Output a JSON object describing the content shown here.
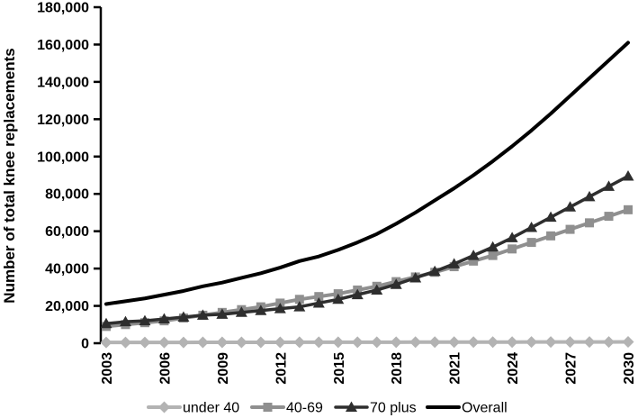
{
  "chart_data": {
    "type": "line",
    "title": "",
    "ylabel": "Number of total knee replacements",
    "xlabel": "",
    "ylim": [
      0,
      180000
    ],
    "ytick_step": 20000,
    "ytick_labels": [
      "0",
      "20,000",
      "40,000",
      "60,000",
      "80,000",
      "100,000",
      "120,000",
      "140,000",
      "160,000",
      "180,000"
    ],
    "x": [
      2003,
      2004,
      2005,
      2006,
      2007,
      2008,
      2009,
      2010,
      2011,
      2012,
      2013,
      2014,
      2015,
      2016,
      2017,
      2018,
      2019,
      2020,
      2021,
      2022,
      2023,
      2024,
      2025,
      2026,
      2027,
      2028,
      2029,
      2030
    ],
    "xtick_labels": [
      "2003",
      "2006",
      "2009",
      "2012",
      "2015",
      "2018",
      "2021",
      "2024",
      "2027",
      "2030"
    ],
    "grid": false,
    "legend_position": "bottom",
    "series": [
      {
        "name": "under 40",
        "marker": "diamond",
        "color": "#b3b3b3",
        "line_width": 4,
        "values": [
          400,
          410,
          420,
          430,
          450,
          460,
          470,
          480,
          500,
          510,
          520,
          530,
          540,
          550,
          560,
          570,
          580,
          590,
          600,
          610,
          620,
          630,
          640,
          650,
          660,
          670,
          680,
          700
        ]
      },
      {
        "name": "40-69",
        "marker": "square",
        "color": "#8f8f8f",
        "line_width": 4,
        "values": [
          9000,
          10000,
          11000,
          12000,
          13500,
          15000,
          16500,
          18000,
          19500,
          21500,
          23500,
          25000,
          26500,
          28500,
          30500,
          33000,
          35500,
          38000,
          41000,
          44000,
          47000,
          50500,
          54000,
          57500,
          61000,
          64500,
          68000,
          71500
        ]
      },
      {
        "name": "70 plus",
        "marker": "triangle",
        "color": "#2e2e2e",
        "line_width": 3.5,
        "values": [
          10500,
          11500,
          12000,
          13000,
          14000,
          15000,
          15500,
          16500,
          17500,
          18500,
          19500,
          21500,
          23500,
          26000,
          28500,
          31500,
          35000,
          38500,
          42500,
          47000,
          51500,
          56500,
          62000,
          67500,
          73000,
          78500,
          84000,
          89500
        ]
      },
      {
        "name": "Overall",
        "marker": "none",
        "color": "#000000",
        "line_width": 4,
        "values": [
          21000,
          22500,
          24000,
          26000,
          28000,
          30500,
          32500,
          35000,
          37500,
          40500,
          44000,
          46500,
          50000,
          54000,
          58500,
          64000,
          70000,
          76500,
          83000,
          90000,
          97500,
          105500,
          114000,
          123000,
          132500,
          142000,
          151500,
          161000
        ]
      }
    ]
  }
}
